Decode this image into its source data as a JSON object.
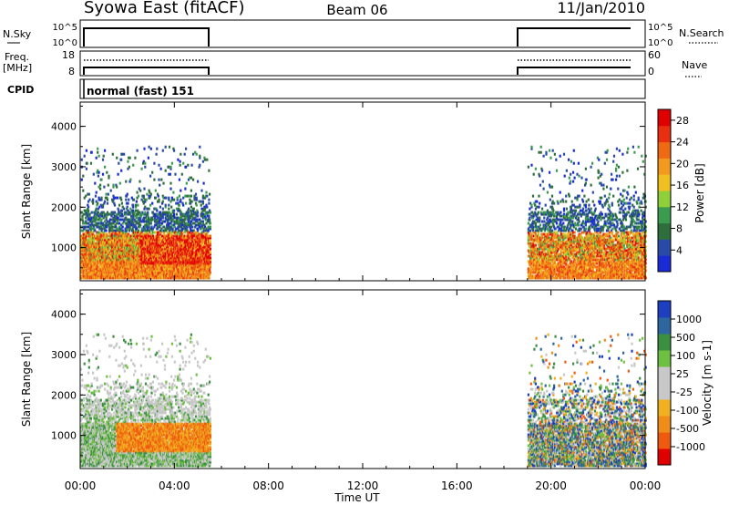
{
  "header": {
    "station": "Syowa East (fitACF)",
    "beam": "Beam 06",
    "date": "11/Jan/2010"
  },
  "strips": {
    "nsky": {
      "label": "N.Sky",
      "ticks": [
        "10^5",
        "10^0"
      ],
      "right_ticks": [
        "10^5",
        "10^0"
      ],
      "right_label": "N.Search"
    },
    "freq": {
      "label_top": "Freq.",
      "label_bottom": "[MHz]",
      "ticks": [
        "18",
        "8"
      ],
      "right_ticks": [
        "60",
        "0"
      ],
      "right_label": "Nave"
    },
    "cpid": {
      "label": "CPID",
      "value": "normal (fast) 151"
    }
  },
  "colors": {
    "power": [
      "#1a2bd6",
      "#2a4aa8",
      "#2e6e3a",
      "#3b9b4f",
      "#8fcf3a",
      "#f0c020",
      "#f29a1e",
      "#f06a14",
      "#e83010",
      "#e00000"
    ],
    "velocity": [
      "#e00000",
      "#f05a10",
      "#f08c18",
      "#f0b020",
      "#c8c8c8",
      "#c8c8c8",
      "#6ec040",
      "#3a8f40",
      "#2e66a0",
      "#1e3fc0"
    ]
  },
  "chart_data": [
    {
      "type": "heatmap",
      "title": "Power",
      "xlabel": "",
      "ylabel": "Slant Range [km]",
      "x_ticks": [
        "00:00",
        "04:00",
        "08:00",
        "12:00",
        "16:00",
        "20:00",
        "00:00"
      ],
      "y_ticks": [
        "1000",
        "2000",
        "3000",
        "4000"
      ],
      "xlim_hours": [
        0,
        24
      ],
      "ylim_km": [
        180,
        4600
      ],
      "colorbar_label": "Power [dB]",
      "colorbar_ticks": [
        "4",
        "8",
        "12",
        "16",
        "20",
        "24",
        "28"
      ],
      "colorbar_range": [
        0,
        30
      ],
      "data_windows_hours": [
        [
          0,
          5.5
        ],
        [
          19,
          24
        ]
      ]
    },
    {
      "type": "heatmap",
      "title": "Velocity",
      "xlabel": "Time UT",
      "ylabel": "Slant Range [km]",
      "x_ticks": [
        "00:00",
        "04:00",
        "08:00",
        "12:00",
        "16:00",
        "20:00",
        "00:00"
      ],
      "y_ticks": [
        "1000",
        "2000",
        "3000",
        "4000"
      ],
      "xlim_hours": [
        0,
        24
      ],
      "ylim_km": [
        180,
        4600
      ],
      "colorbar_label": "Velocity [m s-1]",
      "colorbar_ticks": [
        "1000",
        "500",
        "100",
        "25",
        "-25",
        "-100",
        "-500",
        "-1000"
      ],
      "data_windows_hours": [
        [
          0,
          5.5
        ],
        [
          19,
          24
        ]
      ]
    }
  ]
}
